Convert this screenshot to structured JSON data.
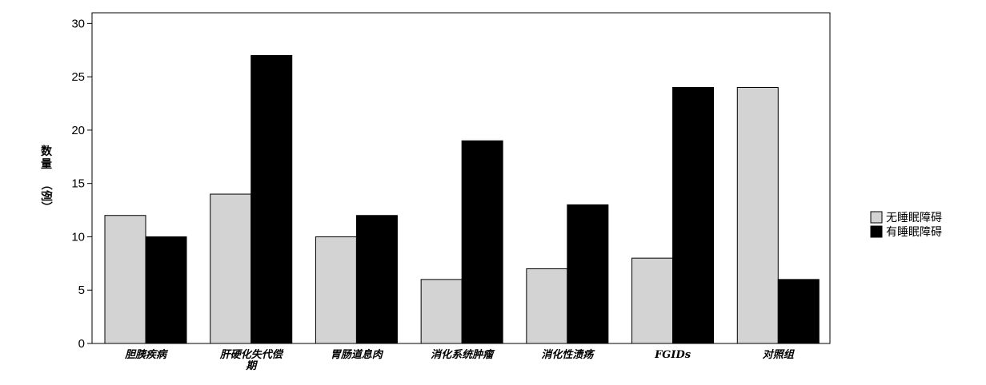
{
  "chart_data": {
    "type": "bar",
    "categories": [
      [
        "胆胰疾病"
      ],
      [
        "肝硬化失代偿",
        "期"
      ],
      [
        "胃肠道息肉"
      ],
      [
        "消化系统肿瘤"
      ],
      [
        "消化性溃疡"
      ],
      [
        "FGIDs"
      ],
      [
        "对照组"
      ]
    ],
    "series": [
      {
        "name": "无睡眠障碍",
        "color": "#d3d3d3",
        "values": [
          12,
          14,
          10,
          6,
          7,
          8,
          24
        ]
      },
      {
        "name": "有睡眠障碍",
        "color": "#000000",
        "values": [
          10,
          27,
          12,
          19,
          13,
          24,
          6
        ]
      }
    ],
    "ylabel": [
      "数量",
      "（例）"
    ],
    "ylim": [
      0,
      31
    ],
    "yticks": [
      0,
      5,
      10,
      15,
      20,
      25,
      30
    ],
    "legend_position": "right",
    "grid": false
  }
}
